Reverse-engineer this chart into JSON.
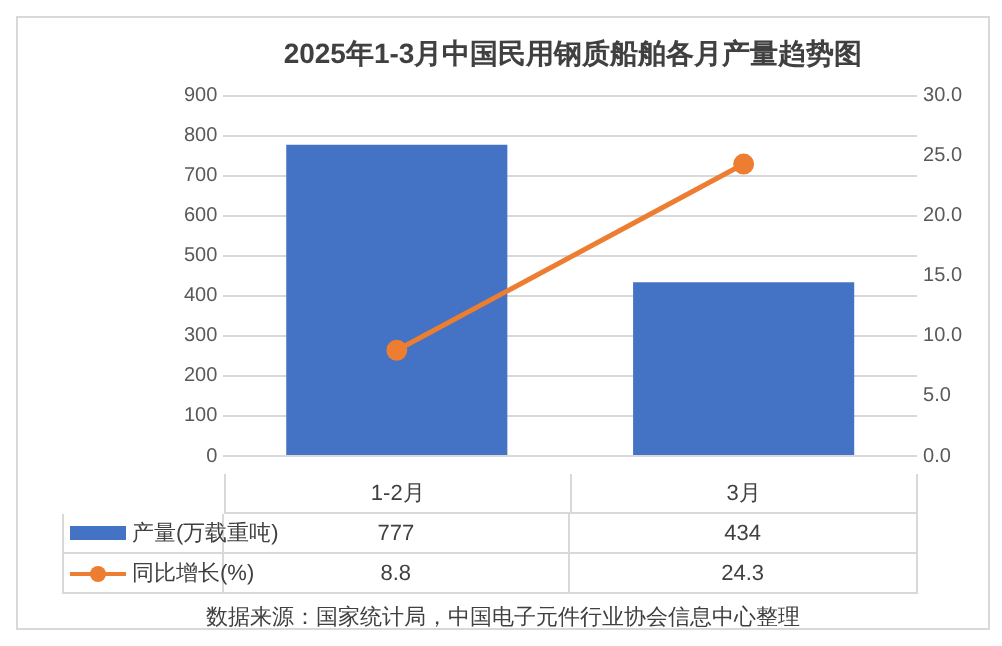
{
  "chart_data": {
    "type": "bar",
    "title": "2025年1-3月中国民用钢质船舶各月产量趋势图",
    "categories": [
      "1-2月",
      "3月"
    ],
    "series": [
      {
        "name": "产量(万载重吨)",
        "color": "#4472c4",
        "values": [
          777,
          434
        ]
      },
      {
        "name": "同比增长(%)",
        "type": "line",
        "axis": "y2",
        "color": "#ed7d31",
        "values": [
          8.8,
          24.3
        ],
        "marker": "circle"
      }
    ],
    "ylim": [
      0,
      900
    ],
    "yticks": [
      0,
      100,
      200,
      300,
      400,
      500,
      600,
      700,
      800,
      900
    ],
    "y2lim": [
      0,
      30
    ],
    "y2ticks": [
      {
        "value": 0,
        "label": "0.0"
      },
      {
        "value": 5,
        "label": "5.0"
      },
      {
        "value": 10,
        "label": "10.0"
      },
      {
        "value": 15,
        "label": "15.0"
      },
      {
        "value": 20,
        "label": "20.0"
      },
      {
        "value": 25,
        "label": "25.0"
      },
      {
        "value": 30,
        "label": "30.0"
      }
    ],
    "grid": "y",
    "legend": "bottom",
    "data_labels": true,
    "annotations": [
      "数据来源：国家统计局，中国电子元件行业协会信息中心整理"
    ]
  }
}
